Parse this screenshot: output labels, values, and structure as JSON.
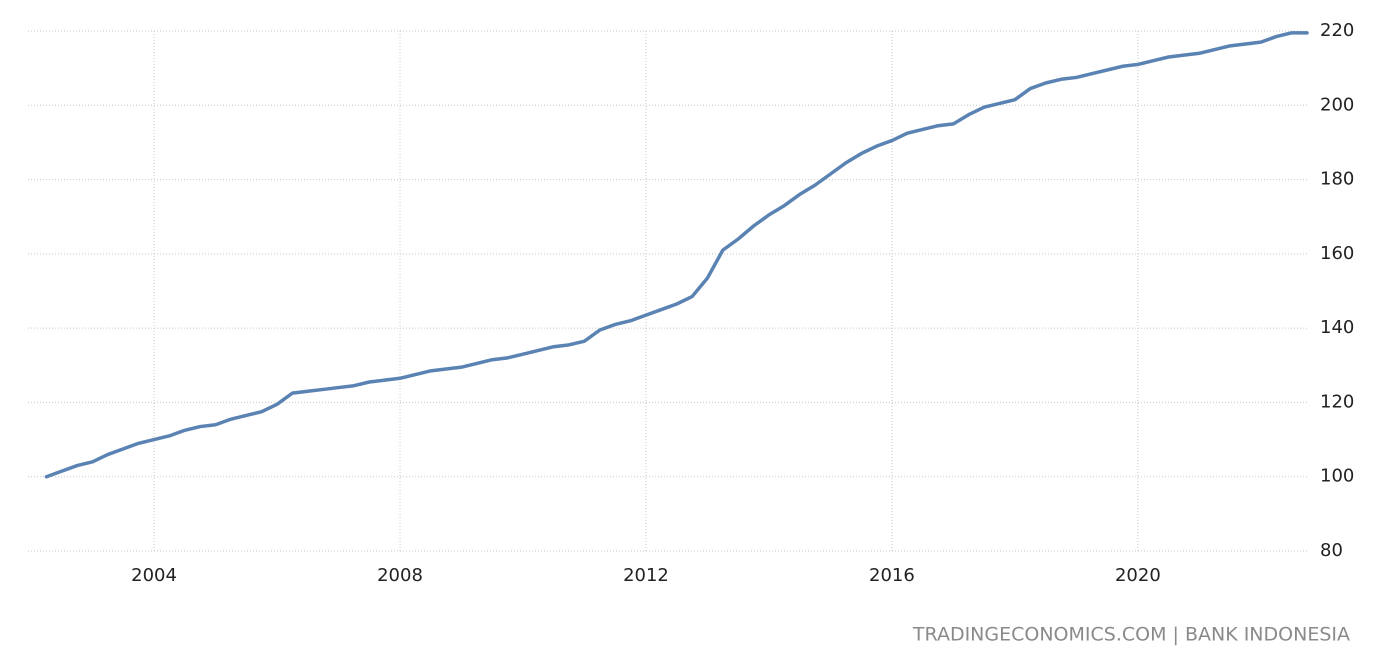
{
  "chart_data": {
    "type": "line",
    "source": "TRADINGECONOMICS.COM | BANK INDONESIA",
    "color": "#5a83b3",
    "grid": true,
    "x": [
      2002.25,
      2002.5,
      2002.75,
      2003,
      2003.25,
      2003.5,
      2003.75,
      2004,
      2004.25,
      2004.5,
      2004.75,
      2005,
      2005.25,
      2005.5,
      2005.75,
      2006,
      2006.25,
      2006.5,
      2006.75,
      2007,
      2007.25,
      2007.5,
      2007.75,
      2008,
      2008.25,
      2008.5,
      2008.75,
      2009,
      2009.25,
      2009.5,
      2009.75,
      2010,
      2010.25,
      2010.5,
      2010.75,
      2011,
      2011.25,
      2011.5,
      2011.75,
      2012,
      2012.25,
      2012.5,
      2012.75,
      2013,
      2013.25,
      2013.5,
      2013.75,
      2014,
      2014.25,
      2014.5,
      2014.75,
      2015,
      2015.25,
      2015.5,
      2015.75,
      2016,
      2016.25,
      2016.5,
      2016.75,
      2017,
      2017.25,
      2017.5,
      2017.75,
      2018,
      2018.25,
      2018.5,
      2018.75,
      2019,
      2019.25,
      2019.5,
      2019.75,
      2020,
      2020.25,
      2020.5,
      2020.75,
      2021,
      2021.25,
      2021.5,
      2021.75,
      2022,
      2022.25,
      2022.5,
      2022.75
    ],
    "values": [
      100,
      101.5,
      103,
      104,
      106,
      107.5,
      109,
      110,
      111,
      112.5,
      113.5,
      114,
      115.5,
      116.5,
      117.5,
      119.5,
      122.5,
      123,
      123.5,
      124,
      124.5,
      125.5,
      126,
      126.5,
      127.5,
      128.5,
      129,
      129.5,
      130.5,
      131.5,
      132,
      133,
      134,
      135,
      135.5,
      136.5,
      139.5,
      141,
      142,
      143.5,
      145,
      146.5,
      148.5,
      153.5,
      161,
      164,
      167.5,
      170.5,
      173,
      176,
      178.5,
      181.5,
      184.5,
      187,
      189,
      190.5,
      192.5,
      193.5,
      194.5,
      195,
      197.5,
      199.5,
      200.5,
      201.5,
      204.5,
      206,
      207,
      207.5,
      208.5,
      209.5,
      210.5,
      211,
      212,
      213,
      213.5,
      214,
      215,
      216,
      216.5,
      217,
      218.5,
      219.5,
      219.5
    ],
    "xlim": [
      2001.95,
      2022.75
    ],
    "xticks": [
      2004,
      2008,
      2012,
      2016,
      2020
    ],
    "ylim": [
      80,
      220
    ],
    "yticks": [
      80,
      100,
      120,
      140,
      160,
      180,
      200,
      220
    ]
  }
}
